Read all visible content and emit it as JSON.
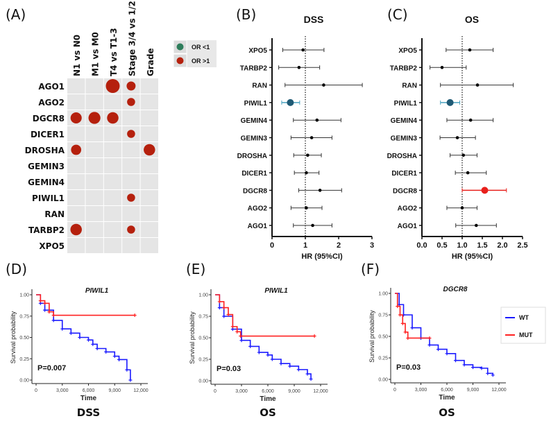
{
  "panel_labels": {
    "A": "(A)",
    "B": "(B)",
    "C": "(C)",
    "D": "(D)",
    "E": "(E)",
    "F": "(F)"
  },
  "chart_data": [
    {
      "id": "A",
      "type": "heatmap",
      "columns": [
        "N1 vs N0",
        "M1 vs M0",
        "T4 vs T1-3",
        "Stage 3/4 vs 1/2",
        "Grade"
      ],
      "rows": [
        "AGO1",
        "AGO2",
        "DGCR8",
        "DICER1",
        "DROSHA",
        "GEMIN3",
        "GEMIN4",
        "PIWIL1",
        "RAN",
        "TARBP2",
        "XPO5"
      ],
      "legend": [
        {
          "label": "OR <1",
          "color": "#2e7d5b"
        },
        {
          "label": "OR >1",
          "color": "#b5200d"
        }
      ],
      "cells": [
        {
          "row": "AGO1",
          "column": "T4 vs T1-3",
          "direction": "OR >1",
          "relative_size": 1.0
        },
        {
          "row": "AGO1",
          "column": "Stage 3/4 vs 1/2",
          "direction": "OR >1",
          "relative_size": 0.5
        },
        {
          "row": "AGO2",
          "column": "Stage 3/4 vs 1/2",
          "direction": "OR >1",
          "relative_size": 0.4
        },
        {
          "row": "DGCR8",
          "column": "N1 vs N0",
          "direction": "OR >1",
          "relative_size": 0.72
        },
        {
          "row": "DGCR8",
          "column": "M1 vs M0",
          "direction": "OR >1",
          "relative_size": 0.8
        },
        {
          "row": "DGCR8",
          "column": "T4 vs T1-3",
          "direction": "OR >1",
          "relative_size": 0.75
        },
        {
          "row": "DICER1",
          "column": "Stage 3/4 vs 1/2",
          "direction": "OR >1",
          "relative_size": 0.4
        },
        {
          "row": "DROSHA",
          "column": "N1 vs N0",
          "direction": "OR >1",
          "relative_size": 0.62
        },
        {
          "row": "DROSHA",
          "column": "Grade",
          "direction": "OR >1",
          "relative_size": 0.75
        },
        {
          "row": "PIWIL1",
          "column": "Stage 3/4 vs 1/2",
          "direction": "OR >1",
          "relative_size": 0.4
        },
        {
          "row": "TARBP2",
          "column": "N1 vs N0",
          "direction": "OR >1",
          "relative_size": 0.75
        },
        {
          "row": "TARBP2",
          "column": "Stage 3/4 vs 1/2",
          "direction": "OR >1",
          "relative_size": 0.4
        }
      ]
    },
    {
      "id": "B",
      "type": "scatter",
      "subtype": "forest",
      "title": "DSS",
      "xlabel": "HR (95%CI)",
      "xlim": [
        0,
        3
      ],
      "xticks": [
        "0",
        "1",
        "2",
        "3"
      ],
      "reference_line": 1,
      "rows": [
        {
          "gene": "XPO5",
          "hr": 0.93,
          "lo": 0.32,
          "hi": 1.56
        },
        {
          "gene": "TARBP2",
          "hr": 0.81,
          "lo": 0.2,
          "hi": 1.43
        },
        {
          "gene": "RAN",
          "hr": 1.55,
          "lo": 0.39,
          "hi": 2.71
        },
        {
          "gene": "PIWIL1",
          "hr": 0.55,
          "lo": 0.29,
          "hi": 0.83,
          "color": "#1f5a75",
          "bar_color": "#4aa3c0"
        },
        {
          "gene": "GEMIN4",
          "hr": 1.35,
          "lo": 0.64,
          "hi": 2.07
        },
        {
          "gene": "GEMIN3",
          "hr": 1.19,
          "lo": 0.57,
          "hi": 1.8
        },
        {
          "gene": "DROSHA",
          "hr": 1.07,
          "lo": 0.65,
          "hi": 1.48
        },
        {
          "gene": "DICER1",
          "hr": 1.03,
          "lo": 0.67,
          "hi": 1.41
        },
        {
          "gene": "DGCR8",
          "hr": 1.44,
          "lo": 0.8,
          "hi": 2.09
        },
        {
          "gene": "AGO2",
          "hr": 1.03,
          "lo": 0.57,
          "hi": 1.5
        },
        {
          "gene": "AGO1",
          "hr": 1.22,
          "lo": 0.64,
          "hi": 1.8
        }
      ]
    },
    {
      "id": "C",
      "type": "scatter",
      "subtype": "forest",
      "title": "OS",
      "xlabel": "HR (95%CI)",
      "xlim": [
        0,
        2.5
      ],
      "xticks": [
        "0.0",
        "0.5",
        "1.0",
        "1.5",
        "2.0",
        "2.5"
      ],
      "reference_line": 1,
      "rows": [
        {
          "gene": "XPO5",
          "hr": 1.19,
          "lo": 0.6,
          "hi": 1.77
        },
        {
          "gene": "TARBP2",
          "hr": 0.5,
          "lo": 0.2,
          "hi": 1.1
        },
        {
          "gene": "RAN",
          "hr": 1.38,
          "lo": 0.46,
          "hi": 2.27
        },
        {
          "gene": "PIWIL1",
          "hr": 0.7,
          "lo": 0.46,
          "hi": 0.94,
          "color": "#1f5a75",
          "bar_color": "#4aa3c0"
        },
        {
          "gene": "GEMIN4",
          "hr": 1.21,
          "lo": 0.62,
          "hi": 1.77
        },
        {
          "gene": "GEMIN3",
          "hr": 0.88,
          "lo": 0.45,
          "hi": 1.33
        },
        {
          "gene": "DROSHA",
          "hr": 1.03,
          "lo": 0.7,
          "hi": 1.37
        },
        {
          "gene": "DICER1",
          "hr": 1.14,
          "lo": 0.83,
          "hi": 1.6
        },
        {
          "gene": "DGCR8",
          "hr": 1.56,
          "lo": 1.0,
          "hi": 2.1,
          "color": "#e8201c",
          "bar_color": "#e8201c"
        },
        {
          "gene": "AGO2",
          "hr": 1.0,
          "lo": 0.62,
          "hi": 1.37
        },
        {
          "gene": "AGO1",
          "hr": 1.35,
          "lo": 0.84,
          "hi": 1.85
        }
      ]
    },
    {
      "id": "D",
      "type": "line",
      "subtype": "kaplan-meier",
      "title": "PIWIL1",
      "subtitle": "DSS",
      "annotation": "P=0.007",
      "xlabel": "Time",
      "ylabel": "Survival probability",
      "xlim": [
        0,
        12000
      ],
      "ylim": [
        0,
        1
      ],
      "xticks": [
        "0",
        "3,000",
        "6,000",
        "9,000",
        "12,000"
      ],
      "yticks": [
        "0.00",
        "0.25",
        "0.50",
        "0.75",
        "1.00"
      ],
      "series": [
        {
          "name": "WT",
          "color": "#1a1aff",
          "points": [
            [
              0,
              1
            ],
            [
              500,
              0.9
            ],
            [
              1000,
              0.82
            ],
            [
              2000,
              0.7
            ],
            [
              3000,
              0.6
            ],
            [
              4000,
              0.55
            ],
            [
              5000,
              0.5
            ],
            [
              6000,
              0.47
            ],
            [
              6500,
              0.42
            ],
            [
              7000,
              0.37
            ],
            [
              8000,
              0.33
            ],
            [
              9000,
              0.28
            ],
            [
              9500,
              0.24
            ],
            [
              10400,
              0.12
            ],
            [
              10800,
              0.0
            ]
          ]
        },
        {
          "name": "MUT",
          "color": "#ff2020",
          "points": [
            [
              0,
              1
            ],
            [
              500,
              0.93
            ],
            [
              1000,
              0.9
            ],
            [
              1500,
              0.8
            ],
            [
              2000,
              0.76
            ],
            [
              11300,
              0.76
            ]
          ]
        }
      ]
    },
    {
      "id": "E",
      "type": "line",
      "subtype": "kaplan-meier",
      "title": "PIWIL1",
      "subtitle": "OS",
      "annotation": "P=0.03",
      "xlabel": "Time",
      "ylabel": "Survival probability",
      "xlim": [
        0,
        12000
      ],
      "ylim": [
        0,
        1
      ],
      "xticks": [
        "0",
        "3,000",
        "6,000",
        "9,000",
        "12,000"
      ],
      "yticks": [
        "0.00",
        "0.25",
        "0.50",
        "0.75",
        "1.00"
      ],
      "series": [
        {
          "name": "WT",
          "color": "#1a1aff",
          "points": [
            [
              0,
              1
            ],
            [
              500,
              0.85
            ],
            [
              1000,
              0.75
            ],
            [
              2000,
              0.6
            ],
            [
              3000,
              0.47
            ],
            [
              4000,
              0.4
            ],
            [
              5000,
              0.33
            ],
            [
              6000,
              0.3
            ],
            [
              6500,
              0.25
            ],
            [
              7500,
              0.2
            ],
            [
              8500,
              0.17
            ],
            [
              9500,
              0.13
            ],
            [
              10500,
              0.08
            ],
            [
              10900,
              0.02
            ]
          ]
        },
        {
          "name": "MUT",
          "color": "#ff2020",
          "points": [
            [
              0,
              1
            ],
            [
              500,
              0.92
            ],
            [
              1000,
              0.85
            ],
            [
              1500,
              0.77
            ],
            [
              2000,
              0.63
            ],
            [
              2500,
              0.57
            ],
            [
              2900,
              0.52
            ],
            [
              11300,
              0.52
            ]
          ]
        }
      ]
    },
    {
      "id": "F",
      "type": "line",
      "subtype": "kaplan-meier",
      "title": "DGCR8",
      "subtitle": "OS",
      "annotation": "P=0.03",
      "xlabel": "Time",
      "ylabel": "Survival probability",
      "xlim": [
        0,
        12000
      ],
      "ylim": [
        0,
        1
      ],
      "xticks": [
        "0",
        "3,000",
        "6,000",
        "9,000",
        "12,000"
      ],
      "yticks": [
        "0.00",
        "0.25",
        "0.50",
        "0.75",
        "1.00"
      ],
      "legend": [
        "WT",
        "MUT"
      ],
      "legend_position": "right",
      "series": [
        {
          "name": "WT",
          "color": "#1a1aff",
          "points": [
            [
              0,
              1
            ],
            [
              500,
              0.87
            ],
            [
              1000,
              0.75
            ],
            [
              2000,
              0.6
            ],
            [
              3000,
              0.48
            ],
            [
              4000,
              0.4
            ],
            [
              5000,
              0.35
            ],
            [
              6000,
              0.3
            ],
            [
              7000,
              0.22
            ],
            [
              8000,
              0.17
            ],
            [
              9000,
              0.14
            ],
            [
              10000,
              0.13
            ],
            [
              10700,
              0.07
            ],
            [
              11300,
              0.05
            ]
          ]
        },
        {
          "name": "MUT",
          "color": "#ff2020",
          "points": [
            [
              0,
              1
            ],
            [
              300,
              0.85
            ],
            [
              600,
              0.75
            ],
            [
              900,
              0.65
            ],
            [
              1200,
              0.55
            ],
            [
              1500,
              0.48
            ],
            [
              4000,
              0.48
            ]
          ]
        }
      ]
    }
  ]
}
